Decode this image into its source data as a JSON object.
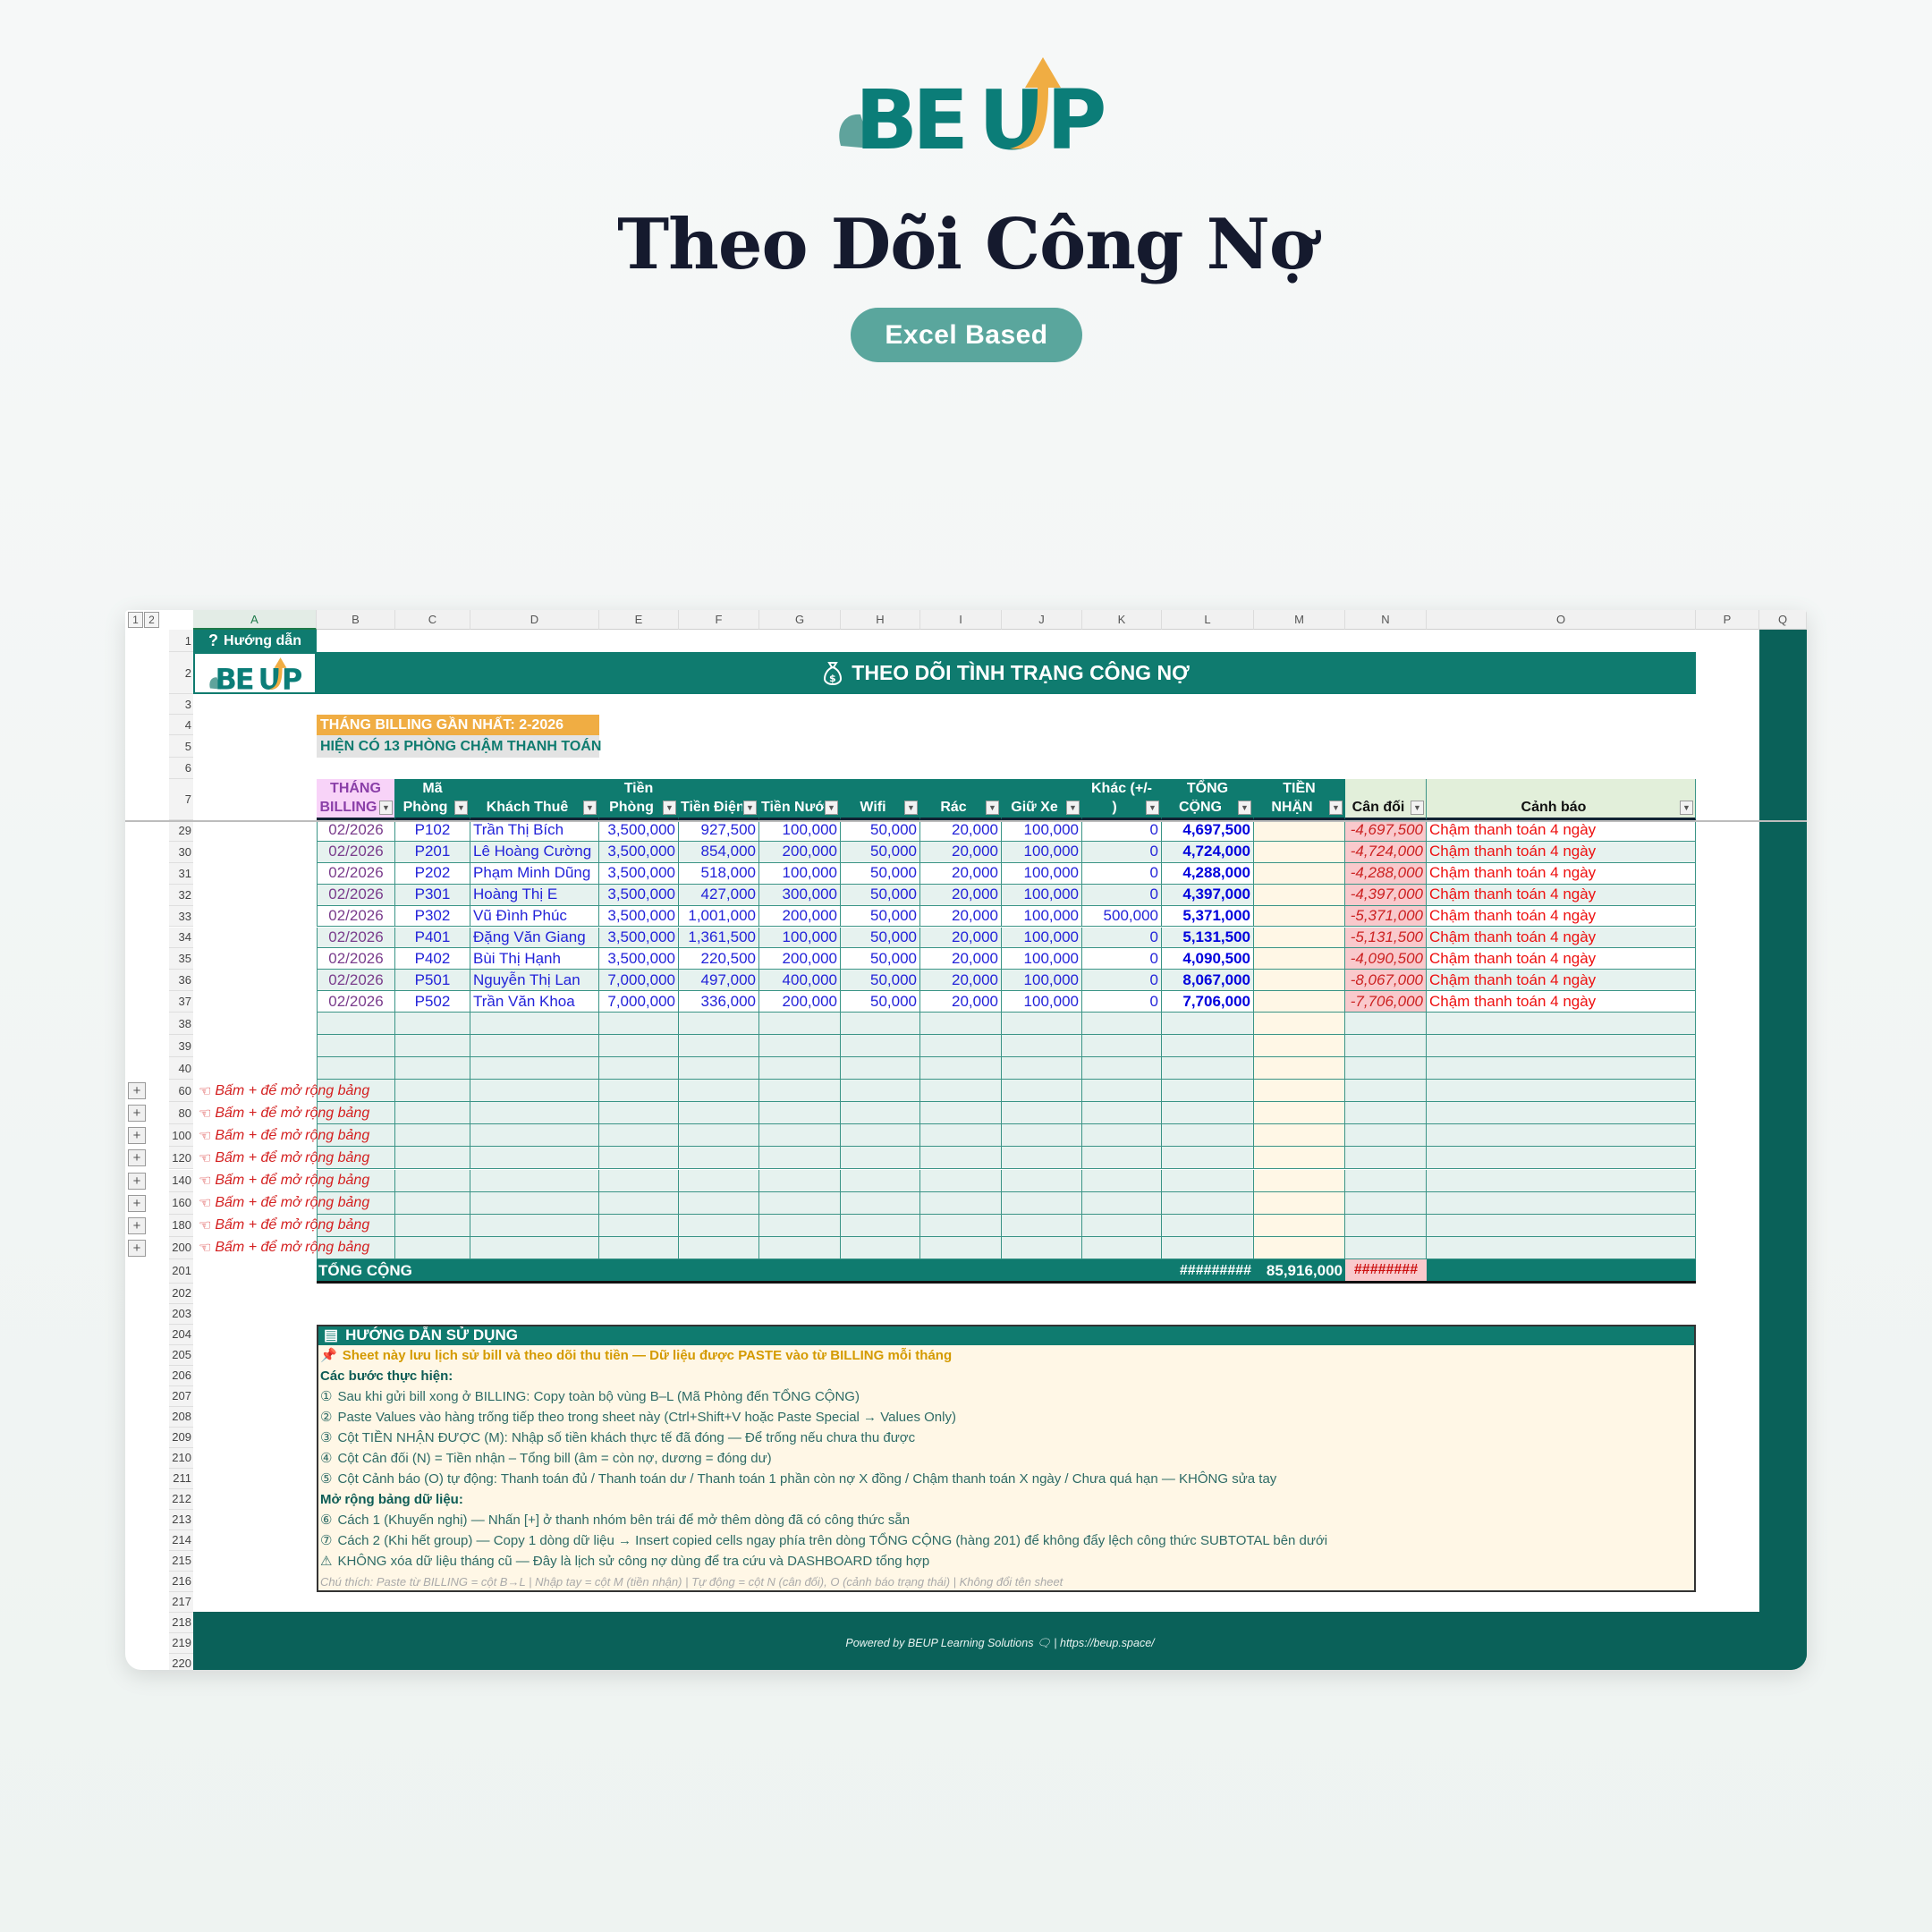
{
  "brand": "BEUP",
  "hero": {
    "title": "Theo Dõi Công Nợ",
    "badge": "Excel Based"
  },
  "colors": {
    "teal": "#0f7b6f",
    "orange": "#f0ad43",
    "dark_teal": "#0a6159",
    "alert_red": "#ee1111",
    "balance_pink": "#f9c9cc",
    "received_cream": "#fff7e6"
  },
  "sheet": {
    "outline_levels": [
      "1",
      "2"
    ],
    "columns": [
      "A",
      "B",
      "C",
      "D",
      "E",
      "F",
      "G",
      "H",
      "I",
      "J",
      "K",
      "L",
      "M",
      "N",
      "O",
      "P",
      "Q"
    ],
    "guide_button": "Hướng dẫn",
    "title": "THEO DÕI TÌNH TRẠNG CÔNG NỢ",
    "latest_billing": "THÁNG BILLING GẦN NHẤT: 2-2026",
    "late_count": "HIỆN CÓ 13 PHÒNG CHẬM THANH TOÁN",
    "headers": [
      [
        "THÁNG",
        "BILLING"
      ],
      [
        "Mã",
        "Phòng"
      ],
      [
        "",
        "Khách Thuê"
      ],
      [
        "Tiền",
        "Phòng"
      ],
      [
        "",
        "Tiền Điện"
      ],
      [
        "",
        "Tiền Nước"
      ],
      [
        "",
        "Wifi"
      ],
      [
        "",
        "Rác"
      ],
      [
        "",
        "Giữ Xe"
      ],
      [
        "Khác (+/-",
        ")"
      ],
      [
        "TỔNG",
        "CỘNG"
      ],
      [
        "TIỀN",
        "NHẬN"
      ],
      [
        "",
        "Cân đối"
      ],
      [
        "",
        "Cảnh báo"
      ]
    ],
    "rows": [
      {
        "row": "29",
        "cells": [
          "02/2026",
          "P102",
          "Trần Thị Bích",
          "3,500,000",
          "927,500",
          "100,000",
          "50,000",
          "20,000",
          "100,000",
          "0",
          "4,697,500",
          "",
          "-4,697,500",
          "Chậm thanh toán 4 ngày"
        ]
      },
      {
        "row": "30",
        "cells": [
          "02/2026",
          "P201",
          "Lê Hoàng Cường",
          "3,500,000",
          "854,000",
          "200,000",
          "50,000",
          "20,000",
          "100,000",
          "0",
          "4,724,000",
          "",
          "-4,724,000",
          "Chậm thanh toán 4 ngày"
        ]
      },
      {
        "row": "31",
        "cells": [
          "02/2026",
          "P202",
          "Phạm Minh Dũng",
          "3,500,000",
          "518,000",
          "100,000",
          "50,000",
          "20,000",
          "100,000",
          "0",
          "4,288,000",
          "",
          "-4,288,000",
          "Chậm thanh toán 4 ngày"
        ]
      },
      {
        "row": "32",
        "cells": [
          "02/2026",
          "P301",
          "Hoàng Thị E",
          "3,500,000",
          "427,000",
          "300,000",
          "50,000",
          "20,000",
          "100,000",
          "0",
          "4,397,000",
          "",
          "-4,397,000",
          "Chậm thanh toán 4 ngày"
        ]
      },
      {
        "row": "33",
        "cells": [
          "02/2026",
          "P302",
          "Vũ Đình Phúc",
          "3,500,000",
          "1,001,000",
          "200,000",
          "50,000",
          "20,000",
          "100,000",
          "500,000",
          "5,371,000",
          "",
          "-5,371,000",
          "Chậm thanh toán 4 ngày"
        ]
      },
      {
        "row": "34",
        "cells": [
          "02/2026",
          "P401",
          "Đặng Văn Giang",
          "3,500,000",
          "1,361,500",
          "100,000",
          "50,000",
          "20,000",
          "100,000",
          "0",
          "5,131,500",
          "",
          "-5,131,500",
          "Chậm thanh toán 4 ngày"
        ]
      },
      {
        "row": "35",
        "cells": [
          "02/2026",
          "P402",
          "Bùi Thị Hạnh",
          "3,500,000",
          "220,500",
          "200,000",
          "50,000",
          "20,000",
          "100,000",
          "0",
          "4,090,500",
          "",
          "-4,090,500",
          "Chậm thanh toán 4 ngày"
        ]
      },
      {
        "row": "36",
        "cells": [
          "02/2026",
          "P501",
          "Nguyễn Thị Lan",
          "7,000,000",
          "497,000",
          "400,000",
          "50,000",
          "20,000",
          "100,000",
          "0",
          "8,067,000",
          "",
          "-8,067,000",
          "Chậm thanh toán 4 ngày"
        ]
      },
      {
        "row": "37",
        "cells": [
          "02/2026",
          "P502",
          "Trần Văn Khoa",
          "7,000,000",
          "336,000",
          "200,000",
          "50,000",
          "20,000",
          "100,000",
          "0",
          "7,706,000",
          "",
          "-7,706,000",
          "Chậm thanh toán 4 ngày"
        ]
      }
    ],
    "empty_rows": [
      "38",
      "39",
      "40"
    ],
    "group_rows": [
      "60",
      "80",
      "100",
      "120",
      "140",
      "160",
      "180",
      "200"
    ],
    "expand_hint": "Bấm + để mở rộng bảng",
    "total": {
      "row": "201",
      "label": "TỔNG CỘNG",
      "total_bill": "#########",
      "received": "85,916,000",
      "balance": "########"
    },
    "trailing_rows": [
      "202",
      "203",
      "204",
      "205",
      "206",
      "207",
      "208",
      "209",
      "210",
      "211",
      "212",
      "213",
      "214",
      "215",
      "216",
      "217",
      "218",
      "219",
      "220"
    ],
    "instructions": {
      "title": "HƯỚNG DẪN SỬ DỤNG",
      "intro": "Sheet này lưu lịch sử bill và theo dõi thu tiền — Dữ liệu được PASTE vào từ BILLING mỗi tháng",
      "steps_heading": "Các bước thực hiện:",
      "steps": [
        {
          "mark": "①",
          "text": "Sau khi gửi bill xong ở BILLING: Copy toàn bộ vùng B–L (Mã Phòng đến TỔNG CỘNG)"
        },
        {
          "mark": "②",
          "text": "Paste Values vào hàng trống tiếp theo trong sheet này (Ctrl+Shift+V hoặc Paste Special → Values Only)"
        },
        {
          "mark": "③",
          "text": "Cột TIỀN NHẬN ĐƯỢC (M): Nhập số tiền khách thực tế đã đóng — Để trống nếu chưa thu được"
        },
        {
          "mark": "④",
          "text": "Cột Cân đối (N) = Tiền nhận – Tổng bill (âm = còn nợ, dương = đóng dư)"
        },
        {
          "mark": "⑤",
          "text": "Cột Cảnh báo (O) tự động: Thanh toán đủ / Thanh toán dư / Thanh toán 1 phần còn nợ X đồng / Chậm thanh toán X ngày / Chưa quá hạn — KHÔNG sửa tay"
        }
      ],
      "expand_heading": "Mở rộng bảng dữ liệu:",
      "expand": [
        {
          "mark": "⑥",
          "text": "Cách 1 (Khuyến nghị) — Nhấn [+] ở thanh nhóm bên trái để mở thêm dòng đã có công thức sẵn"
        },
        {
          "mark": "⑦",
          "text": "Cách 2 (Khi hết group) — Copy 1 dòng dữ liệu → Insert copied cells ngay phía trên dòng TỔNG CỘNG (hàng 201) để không đẩy lệch công thức SUBTOTAL bên dưới"
        },
        {
          "mark": "⚠",
          "text": "KHÔNG xóa dữ liệu tháng cũ — Đây là lịch sử công nợ dùng để tra cứu và DASHBOARD tổng hợp"
        }
      ],
      "note": "Chú thích:  Paste từ BILLING = cột B→L  |  Nhập tay = cột M (tiền nhận)  |  Tự động = cột N (cân đối), O (cảnh báo trạng thái)  |  Không đổi tên sheet"
    },
    "footer": "Powered by BEUP Learning Solutions 🗨 | https://beup.space/"
  }
}
